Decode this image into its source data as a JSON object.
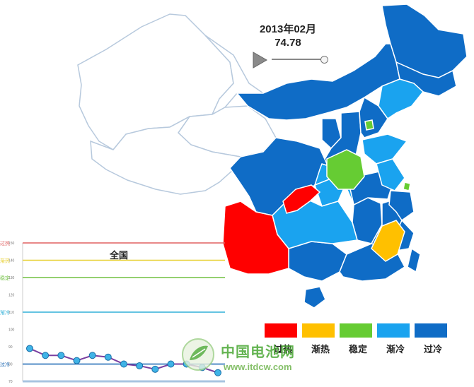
{
  "header": {
    "date": "2013年02月",
    "value": "74.78"
  },
  "slider": {
    "position": 1.0
  },
  "legend": [
    {
      "label": "过热",
      "color": "#ff0000"
    },
    {
      "label": "渐热",
      "color": "#ffc000"
    },
    {
      "label": "稳定",
      "color": "#66cc33"
    },
    {
      "label": "渐冷",
      "color": "#1aa3ef"
    },
    {
      "label": "过冷",
      "color": "#0f6cc6"
    }
  ],
  "chart_data": {
    "type": "line",
    "title": "全国",
    "ylim": [
      70,
      150
    ],
    "yticks": [
      "70",
      "80",
      "90",
      "100",
      "110",
      "120",
      "130",
      "140",
      "150"
    ],
    "zones": [
      {
        "label": "过热",
        "y": 150,
        "color": "#e06060"
      },
      {
        "label": "渐热",
        "y": 140,
        "color": "#e8d030"
      },
      {
        "label": "稳定",
        "y": 130,
        "color": "#70c040"
      },
      {
        "label": "渐冷",
        "y": 110,
        "color": "#30b0d8"
      },
      {
        "label": "过冷",
        "y": 80,
        "color": "#1060b0"
      }
    ],
    "series": [
      {
        "values": [
          89,
          85,
          85,
          82,
          85,
          84,
          80,
          79,
          77,
          80,
          80,
          78,
          75
        ]
      }
    ]
  },
  "watermark": {
    "cn": "中国电池网",
    "url": "www.itdcw.com"
  }
}
